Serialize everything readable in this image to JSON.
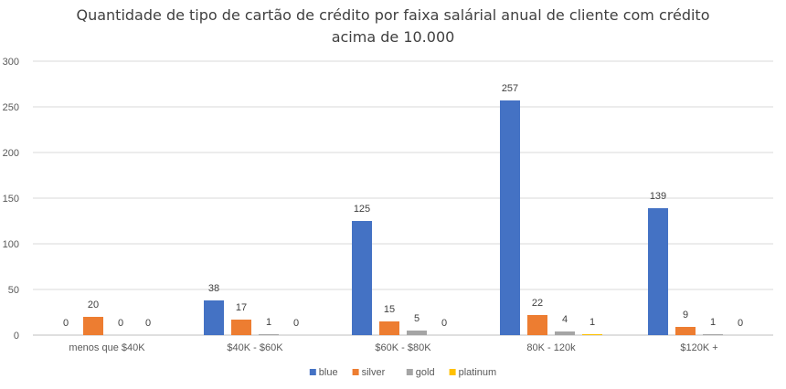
{
  "chart_data": {
    "type": "bar",
    "title_line1": "Quantidade de tipo de cartão de crédito por faixa salárial anual de cliente com crédito",
    "title_line2": "acima de 10.000",
    "categories": [
      "menos que $40K",
      "$40K - $60K",
      "$60K - $80K",
      "80K - 120k",
      "$120K +"
    ],
    "series": [
      {
        "name": "blue",
        "color": "#4472C4",
        "values": [
          0,
          38,
          125,
          257,
          139
        ]
      },
      {
        "name": "silver",
        "color": "#ED7D31",
        "values": [
          20,
          17,
          15,
          22,
          9
        ]
      },
      {
        "name": "gold",
        "color": "#A5A5A5",
        "values": [
          0,
          1,
          5,
          4,
          1
        ]
      },
      {
        "name": "platinum",
        "color": "#FFC000",
        "values": [
          0,
          0,
          0,
          1,
          0
        ]
      }
    ],
    "ylim": [
      0,
      300
    ],
    "yticks": [
      0,
      50,
      100,
      150,
      200,
      250,
      300
    ],
    "grid": true,
    "legend": "bottom",
    "data_labels": true
  }
}
